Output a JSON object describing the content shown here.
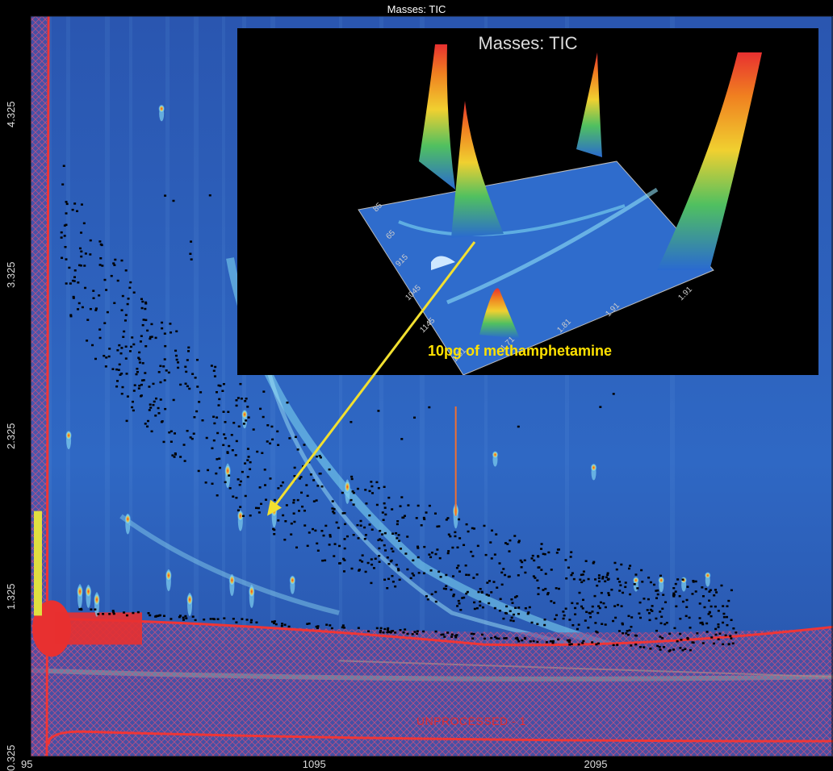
{
  "chart_data": {
    "type": "heatmap",
    "title": "Masses:  TIC",
    "x_ticks": [
      "95",
      "1095",
      "2095"
    ],
    "y_ticks": [
      "0.325",
      "1.325",
      "2.325",
      "3.325",
      "4.325"
    ],
    "xlim": [
      95,
      2945
    ],
    "ylim": [
      0.325,
      4.925
    ],
    "grid": false,
    "colormap": [
      "#1f3f96",
      "#2a5fc0",
      "#3a8ed8",
      "#7fd0f0",
      "#e8f060",
      "#f08a20",
      "#e83030"
    ],
    "background": "#2650a8",
    "unprocessed_label": "UNPROCESSED - 1",
    "peaks": [
      {
        "x": 230,
        "y": 2.32,
        "i": 0.7
      },
      {
        "x": 270,
        "y": 1.35,
        "i": 0.95
      },
      {
        "x": 300,
        "y": 1.35,
        "i": 0.9
      },
      {
        "x": 330,
        "y": 1.3,
        "i": 0.95
      },
      {
        "x": 440,
        "y": 1.8,
        "i": 0.8
      },
      {
        "x": 560,
        "y": 4.35,
        "i": 0.6
      },
      {
        "x": 585,
        "y": 1.45,
        "i": 0.85
      },
      {
        "x": 660,
        "y": 1.3,
        "i": 0.9
      },
      {
        "x": 795,
        "y": 2.1,
        "i": 0.95
      },
      {
        "x": 810,
        "y": 1.42,
        "i": 0.85
      },
      {
        "x": 840,
        "y": 1.82,
        "i": 0.8
      },
      {
        "x": 880,
        "y": 1.35,
        "i": 0.9
      },
      {
        "x": 855,
        "y": 2.45,
        "i": 0.7
      },
      {
        "x": 960,
        "y": 1.85,
        "i": 0.9
      },
      {
        "x": 1025,
        "y": 1.42,
        "i": 0.7
      },
      {
        "x": 1220,
        "y": 2.0,
        "i": 0.95
      },
      {
        "x": 1605,
        "y": 1.85,
        "i": 0.98
      },
      {
        "x": 1745,
        "y": 2.2,
        "i": 0.55
      },
      {
        "x": 2095,
        "y": 2.12,
        "i": 0.6
      },
      {
        "x": 2245,
        "y": 1.42,
        "i": 0.5
      },
      {
        "x": 2335,
        "y": 1.42,
        "i": 0.55
      },
      {
        "x": 2415,
        "y": 1.42,
        "i": 0.5
      },
      {
        "x": 2500,
        "y": 1.45,
        "i": 0.5
      }
    ],
    "inset": {
      "title": "Masses:  TIC",
      "annotation": "10pg of methamphetamine",
      "axis_labels": [
        "85",
        "65",
        "915",
        "1045",
        "1145",
        "1.61",
        "1.71",
        "1.81",
        "1.91",
        "1.91"
      ],
      "arrow_target": {
        "x": 935,
        "y": 1.82
      }
    }
  }
}
